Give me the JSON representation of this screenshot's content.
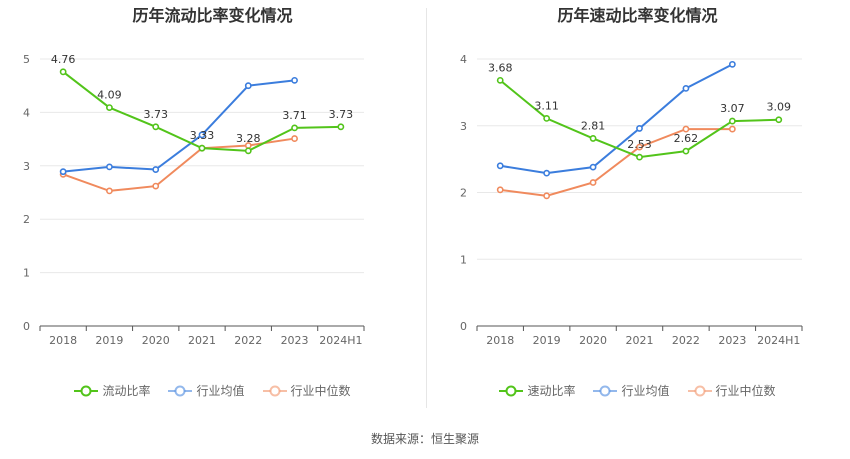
{
  "source_text": "数据来源：恒生聚源",
  "chart_data": [
    {
      "type": "line",
      "title": "历年流动比率变化情况",
      "categories": [
        "2018",
        "2019",
        "2020",
        "2021",
        "2022",
        "2023",
        "2024H1"
      ],
      "ylim": [
        0,
        5
      ],
      "yticks": [
        0,
        1,
        2,
        3,
        4,
        5
      ],
      "grid": true,
      "legend_position": "bottom",
      "series": [
        {
          "name": "流动比率",
          "color": "#52c41a",
          "values": [
            4.76,
            4.09,
            3.73,
            3.33,
            3.28,
            3.71,
            3.73
          ],
          "labels": [
            "4.76",
            "4.09",
            "3.73",
            "3.33",
            "3.28",
            "3.71",
            "3.73"
          ]
        },
        {
          "name": "行业均值",
          "color": "#3b7ddd",
          "values": [
            2.89,
            2.98,
            2.93,
            3.58,
            4.5,
            4.6,
            null
          ]
        },
        {
          "name": "行业中位数",
          "color": "#f08a5d",
          "values": [
            2.84,
            2.53,
            2.62,
            3.33,
            3.38,
            3.51,
            null
          ]
        }
      ]
    },
    {
      "type": "line",
      "title": "历年速动比率变化情况",
      "categories": [
        "2018",
        "2019",
        "2020",
        "2021",
        "2022",
        "2023",
        "2024H1"
      ],
      "ylim": [
        0,
        4
      ],
      "yticks": [
        0,
        1,
        2,
        3,
        4
      ],
      "grid": true,
      "legend_position": "bottom",
      "series": [
        {
          "name": "速动比率",
          "color": "#52c41a",
          "values": [
            3.68,
            3.11,
            2.81,
            2.53,
            2.62,
            3.07,
            3.09
          ],
          "labels": [
            "3.68",
            "3.11",
            "2.81",
            "2.53",
            "2.62",
            "3.07",
            "3.09"
          ]
        },
        {
          "name": "行业均值",
          "color": "#3b7ddd",
          "values": [
            2.4,
            2.29,
            2.38,
            2.96,
            3.56,
            3.92,
            null
          ]
        },
        {
          "name": "行业中位数",
          "color": "#f08a5d",
          "values": [
            2.04,
            1.95,
            2.15,
            2.68,
            2.95,
            2.95,
            null
          ]
        }
      ]
    }
  ]
}
